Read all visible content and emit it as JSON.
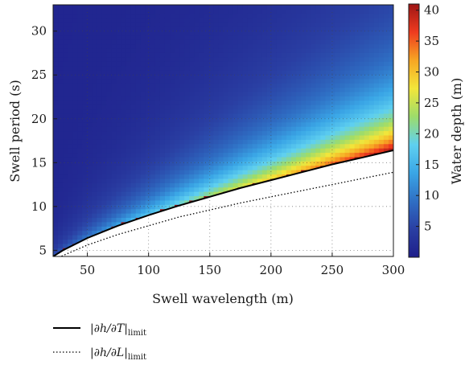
{
  "chart_data": {
    "type": "heatmap",
    "xlabel": "Swell wavelength (m)",
    "ylabel": "Swell period (s)",
    "colorbar_label": "Water depth (m)",
    "xlim": [
      22,
      300
    ],
    "ylim": [
      4.3,
      33
    ],
    "colorbar_lim": [
      0,
      41
    ],
    "x_ticks": [
      50,
      100,
      150,
      200,
      250,
      300
    ],
    "y_ticks": [
      5,
      10,
      15,
      20,
      25,
      30
    ],
    "colorbar_ticks": [
      5,
      10,
      15,
      20,
      25,
      30,
      35,
      40
    ],
    "grid": "dotted",
    "colormap": [
      "#1e1e8a",
      "#2a3fa3",
      "#2f6fc4",
      "#3aa6e6",
      "#5fd0f0",
      "#9ddc6a",
      "#f2e63a",
      "#f7a623",
      "#ef3b1f",
      "#9e1515"
    ],
    "legend_position": "bottom-left",
    "series": [
      {
        "name": "|∂h/∂T|",
        "name_subscript": "limit",
        "style": "solid",
        "x": [
          22,
          30,
          50,
          75,
          100,
          125,
          150,
          175,
          200,
          225,
          250,
          275,
          300
        ],
        "y": [
          4.3,
          5.0,
          6.4,
          7.8,
          9.0,
          10.1,
          11.1,
          12.1,
          13.0,
          13.9,
          14.8,
          15.6,
          16.4
        ]
      },
      {
        "name": "|∂h/∂L|",
        "name_subscript": "limit",
        "style": "dotted",
        "x": [
          22,
          30,
          50,
          75,
          100,
          125,
          150,
          175,
          200,
          225,
          250,
          275,
          300
        ],
        "y": [
          3.8,
          4.4,
          5.6,
          6.8,
          7.8,
          8.8,
          9.6,
          10.4,
          11.1,
          11.8,
          12.5,
          13.2,
          13.9
        ]
      }
    ]
  }
}
